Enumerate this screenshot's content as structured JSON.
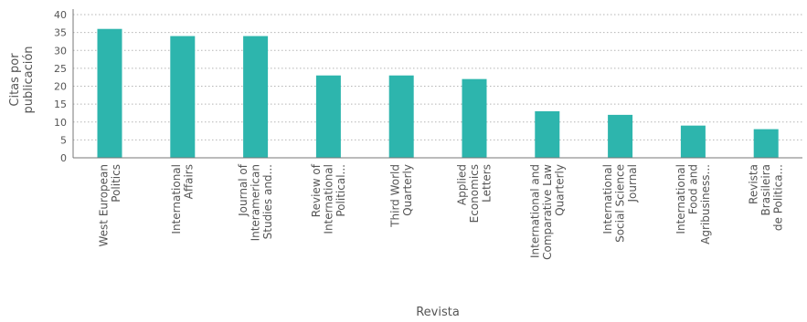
{
  "chart_data": {
    "type": "bar",
    "title": "",
    "xlabel": "Revista",
    "ylabel": [
      "Citas por",
      "publicación"
    ],
    "ylim": [
      0,
      40
    ],
    "yticks": [
      0,
      5,
      10,
      15,
      20,
      25,
      30,
      35,
      40
    ],
    "grid": "horizontal dotted",
    "bar_color": "#2db5ad",
    "categories": [
      [
        "West European",
        "Politics"
      ],
      [
        "International",
        "Affairs"
      ],
      [
        "Journal of",
        "Interamerican",
        "Studies and..."
      ],
      [
        "Review of",
        "International",
        "Political..."
      ],
      [
        "Third World",
        "Quarterly"
      ],
      [
        "Applied",
        "Economics",
        "Letters"
      ],
      [
        "International and",
        "Comparative Law",
        "Quarterly"
      ],
      [
        "International",
        "Social Science",
        "Journal"
      ],
      [
        "International",
        "Food and",
        "Agribusiness..."
      ],
      [
        "Revista",
        "Brasileira",
        "de Politica..."
      ]
    ],
    "values": [
      36,
      34,
      34,
      23,
      23,
      22,
      13,
      12,
      9,
      8
    ]
  }
}
